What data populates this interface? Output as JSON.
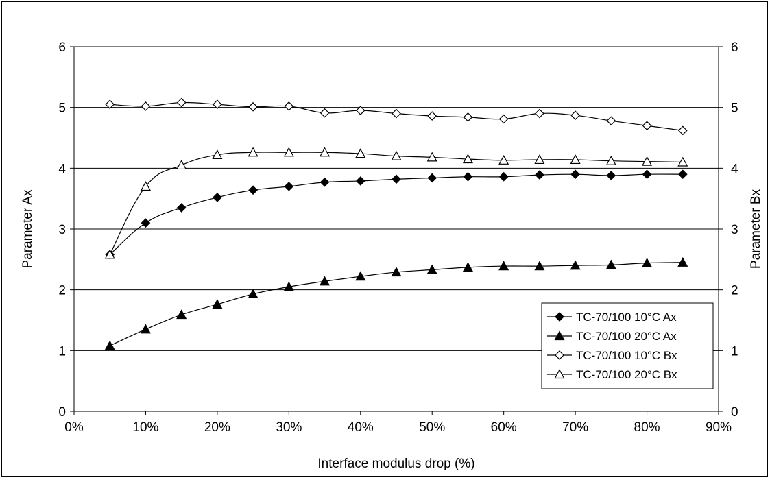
{
  "chart_data": {
    "type": "line",
    "title": "",
    "xlabel": "Interface modulus drop (%)",
    "ylabel": "Parameter Ax",
    "y2label": "Parameter Bx",
    "xlim": [
      0,
      90
    ],
    "ylim": [
      0,
      6
    ],
    "y2lim": [
      0,
      6
    ],
    "x_ticks": [
      "0%",
      "10%",
      "20%",
      "30%",
      "40%",
      "50%",
      "60%",
      "70%",
      "80%",
      "90%"
    ],
    "y_ticks": [
      "0",
      "1",
      "2",
      "3",
      "4",
      "5",
      "6"
    ],
    "y2_ticks": [
      "0",
      "1",
      "2",
      "3",
      "4",
      "5",
      "6"
    ],
    "grid": "horizontal major gridlines",
    "legend_position": "lower-right",
    "x": [
      5,
      10,
      15,
      20,
      25,
      30,
      35,
      40,
      45,
      50,
      55,
      60,
      65,
      70,
      75,
      80,
      85
    ],
    "series": [
      {
        "name": "TC-70/100 10°C Ax",
        "axis": "left",
        "marker": "diamond-filled",
        "values": [
          2.58,
          3.1,
          3.35,
          3.52,
          3.64,
          3.7,
          3.77,
          3.79,
          3.82,
          3.84,
          3.86,
          3.86,
          3.89,
          3.9,
          3.88,
          3.9,
          3.9
        ]
      },
      {
        "name": "TC-70/100 20°C Ax",
        "axis": "left",
        "marker": "triangle-filled",
        "values": [
          1.08,
          1.35,
          1.59,
          1.76,
          1.93,
          2.05,
          2.14,
          2.22,
          2.29,
          2.33,
          2.37,
          2.39,
          2.39,
          2.4,
          2.41,
          2.44,
          2.45
        ]
      },
      {
        "name": "TC-70/100 10°C Bx",
        "axis": "right",
        "marker": "diamond-open",
        "values": [
          5.05,
          5.02,
          5.08,
          5.05,
          5.01,
          5.02,
          4.91,
          4.95,
          4.9,
          4.86,
          4.84,
          4.81,
          4.9,
          4.87,
          4.78,
          4.7,
          4.62
        ]
      },
      {
        "name": "TC-70/100 20°C Bx",
        "axis": "right",
        "marker": "triangle-open",
        "values": [
          2.58,
          3.7,
          4.05,
          4.22,
          4.26,
          4.26,
          4.26,
          4.24,
          4.2,
          4.18,
          4.15,
          4.13,
          4.14,
          4.14,
          4.12,
          4.11,
          4.1
        ]
      }
    ],
    "colors": {
      "line": "#000000",
      "grid": "#000000",
      "background": "#ffffff"
    }
  }
}
